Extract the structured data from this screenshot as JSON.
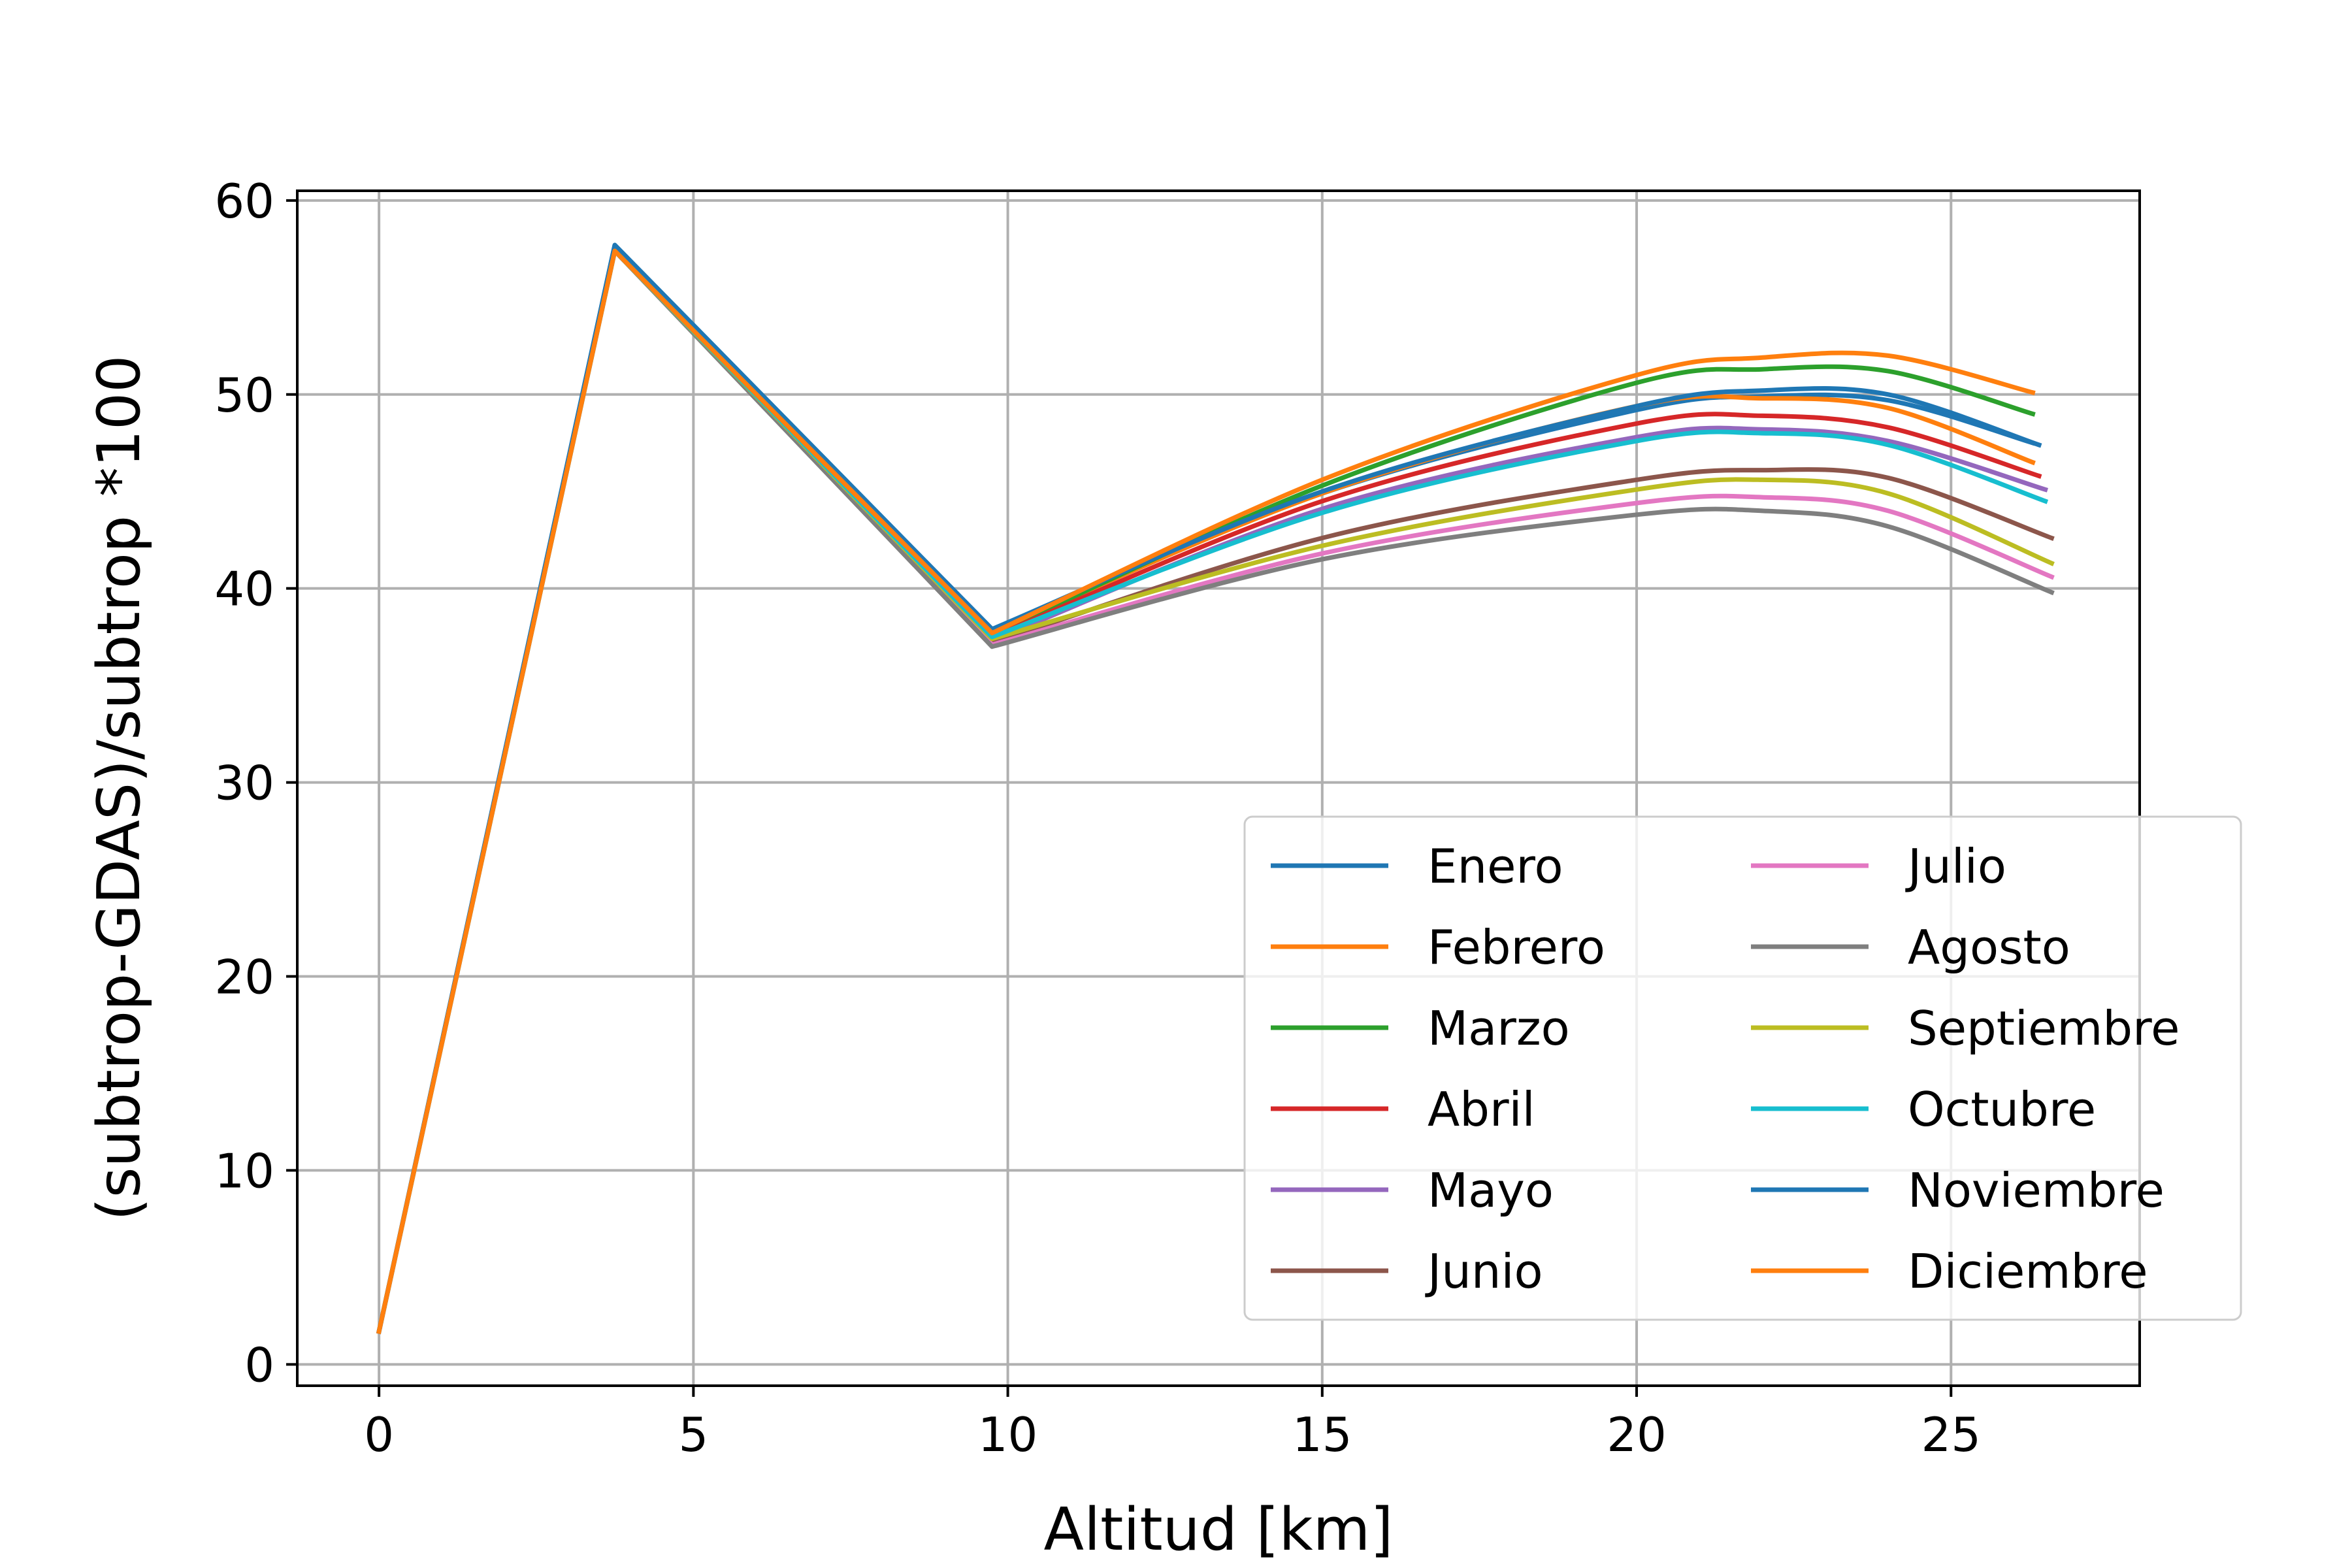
{
  "chart_data": {
    "type": "line",
    "title": "",
    "xlabel": "Altitud [km]",
    "ylabel": "(subtrop-GDAS)/subtrop *100",
    "xlim": [
      -1.3,
      28.0
    ],
    "ylim": [
      -1.1,
      60.5
    ],
    "xticks": [
      0,
      5,
      10,
      15,
      20,
      25
    ],
    "yticks": [
      0,
      10,
      20,
      30,
      40,
      50,
      60
    ],
    "grid": true,
    "legend": {
      "placement": "lower-right",
      "columns": 2
    },
    "x": [
      0,
      3.75,
      9.75,
      15,
      20,
      22,
      24,
      26.3
    ],
    "series": [
      {
        "name": "Enero",
        "color": "#1f77b4",
        "x_end": 26.3,
        "values": [
          1.7,
          57.7,
          37.9,
          44.9,
          49.2,
          49.9,
          49.7,
          47.5
        ]
      },
      {
        "name": "Febrero",
        "color": "#ff7f0e",
        "x_end": 26.3,
        "values": [
          1.7,
          57.4,
          37.7,
          44.9,
          49.4,
          49.8,
          49.3,
          46.5
        ]
      },
      {
        "name": "Marzo",
        "color": "#2ca02c",
        "x_end": 26.3,
        "values": [
          1.7,
          57.4,
          37.6,
          45.3,
          50.6,
          51.3,
          51.2,
          49.0
        ]
      },
      {
        "name": "Abril",
        "color": "#d62728",
        "x_end": 26.4,
        "values": [
          1.7,
          57.4,
          37.5,
          44.5,
          48.5,
          48.9,
          48.3,
          45.8
        ]
      },
      {
        "name": "Mayo",
        "color": "#9467bd",
        "x_end": 26.5,
        "values": [
          1.7,
          57.4,
          37.3,
          44.1,
          47.8,
          48.2,
          47.6,
          45.1
        ]
      },
      {
        "name": "Junio",
        "color": "#8c564b",
        "x_end": 26.6,
        "values": [
          1.7,
          57.4,
          37.2,
          42.6,
          45.6,
          46.1,
          45.7,
          42.6
        ]
      },
      {
        "name": "Julio",
        "color": "#e377c2",
        "x_end": 26.6,
        "values": [
          1.7,
          57.4,
          37.1,
          41.8,
          44.4,
          44.7,
          44.0,
          40.6
        ]
      },
      {
        "name": "Agosto",
        "color": "#7f7f7f",
        "x_end": 26.6,
        "values": [
          1.7,
          57.4,
          37.0,
          41.5,
          43.8,
          44.0,
          43.2,
          39.8
        ]
      },
      {
        "name": "Septiembre",
        "color": "#bcbd22",
        "x_end": 26.6,
        "values": [
          1.7,
          57.4,
          37.4,
          42.2,
          45.1,
          45.6,
          44.9,
          41.3
        ]
      },
      {
        "name": "Octubre",
        "color": "#17becf",
        "x_end": 26.5,
        "values": [
          1.7,
          57.4,
          37.5,
          43.9,
          47.6,
          48.0,
          47.4,
          44.5
        ]
      },
      {
        "name": "Noviembre",
        "color": "#1f77b4",
        "x_end": 26.4,
        "values": [
          1.7,
          57.7,
          37.9,
          45.0,
          49.4,
          50.2,
          50.0,
          47.4
        ]
      },
      {
        "name": "Diciembre",
        "color": "#ff7f0e",
        "x_end": 26.3,
        "values": [
          1.7,
          57.4,
          37.7,
          45.6,
          51.0,
          51.9,
          52.0,
          50.1
        ]
      }
    ]
  }
}
